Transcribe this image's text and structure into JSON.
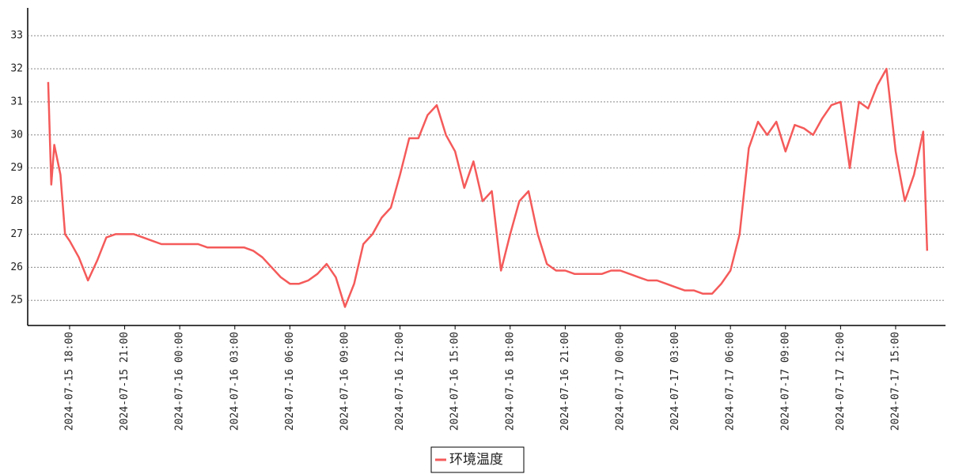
{
  "chart_data": {
    "type": "line",
    "x": [
      "2024-07-15 16:50",
      "2024-07-15 17:00",
      "2024-07-15 17:10",
      "2024-07-15 17:30",
      "2024-07-15 17:45",
      "2024-07-15 18:00",
      "2024-07-15 18:30",
      "2024-07-15 19:00",
      "2024-07-15 19:30",
      "2024-07-15 20:00",
      "2024-07-15 20:30",
      "2024-07-15 21:00",
      "2024-07-15 21:30",
      "2024-07-15 22:00",
      "2024-07-15 22:30",
      "2024-07-15 23:00",
      "2024-07-15 23:30",
      "2024-07-16 00:00",
      "2024-07-16 00:30",
      "2024-07-16 01:00",
      "2024-07-16 01:30",
      "2024-07-16 02:00",
      "2024-07-16 02:30",
      "2024-07-16 03:00",
      "2024-07-16 03:30",
      "2024-07-16 04:00",
      "2024-07-16 04:30",
      "2024-07-16 05:00",
      "2024-07-16 05:30",
      "2024-07-16 06:00",
      "2024-07-16 06:30",
      "2024-07-16 07:00",
      "2024-07-16 07:30",
      "2024-07-16 08:00",
      "2024-07-16 08:30",
      "2024-07-16 09:00",
      "2024-07-16 09:30",
      "2024-07-16 10:00",
      "2024-07-16 10:30",
      "2024-07-16 11:00",
      "2024-07-16 11:30",
      "2024-07-16 12:00",
      "2024-07-16 12:30",
      "2024-07-16 13:00",
      "2024-07-16 13:30",
      "2024-07-16 14:00",
      "2024-07-16 14:30",
      "2024-07-16 15:00",
      "2024-07-16 15:30",
      "2024-07-16 16:00",
      "2024-07-16 16:30",
      "2024-07-16 17:00",
      "2024-07-16 17:30",
      "2024-07-16 18:00",
      "2024-07-16 18:30",
      "2024-07-16 19:00",
      "2024-07-16 19:30",
      "2024-07-16 20:00",
      "2024-07-16 20:30",
      "2024-07-16 21:00",
      "2024-07-16 21:30",
      "2024-07-16 22:00",
      "2024-07-16 22:30",
      "2024-07-16 23:00",
      "2024-07-16 23:30",
      "2024-07-17 00:00",
      "2024-07-17 00:30",
      "2024-07-17 01:00",
      "2024-07-17 01:30",
      "2024-07-17 02:00",
      "2024-07-17 02:30",
      "2024-07-17 03:00",
      "2024-07-17 03:30",
      "2024-07-17 04:00",
      "2024-07-17 04:30",
      "2024-07-17 05:00",
      "2024-07-17 05:30",
      "2024-07-17 06:00",
      "2024-07-17 06:30",
      "2024-07-17 07:00",
      "2024-07-17 07:30",
      "2024-07-17 08:00",
      "2024-07-17 08:30",
      "2024-07-17 09:00",
      "2024-07-17 09:30",
      "2024-07-17 10:00",
      "2024-07-17 10:30",
      "2024-07-17 11:00",
      "2024-07-17 11:30",
      "2024-07-17 12:00",
      "2024-07-17 12:30",
      "2024-07-17 13:00",
      "2024-07-17 13:30",
      "2024-07-17 14:00",
      "2024-07-17 14:30",
      "2024-07-17 15:00",
      "2024-07-17 15:30",
      "2024-07-17 16:00",
      "2024-07-17 16:30",
      "2024-07-17 16:43"
    ],
    "series": [
      {
        "name": "环境温度",
        "color": "#f55a5a",
        "values": [
          31.6,
          28.5,
          29.7,
          28.8,
          27.0,
          26.8,
          26.3,
          25.6,
          26.2,
          26.9,
          27.0,
          27.0,
          27.0,
          26.9,
          26.8,
          26.7,
          26.7,
          26.7,
          26.7,
          26.7,
          26.6,
          26.6,
          26.6,
          26.6,
          26.6,
          26.5,
          26.3,
          26.0,
          25.7,
          25.5,
          25.5,
          25.6,
          25.8,
          26.1,
          25.7,
          24.8,
          25.5,
          26.7,
          27.0,
          27.5,
          27.8,
          28.8,
          29.9,
          29.9,
          30.6,
          30.9,
          30.0,
          29.5,
          28.4,
          29.2,
          28.0,
          28.3,
          25.9,
          27.0,
          28.0,
          28.3,
          27.0,
          26.1,
          25.9,
          25.9,
          25.8,
          25.8,
          25.8,
          25.8,
          25.9,
          25.9,
          25.8,
          25.7,
          25.6,
          25.6,
          25.5,
          25.4,
          25.3,
          25.3,
          25.2,
          25.2,
          25.5,
          25.9,
          27.0,
          29.6,
          30.4,
          30.0,
          30.4,
          29.5,
          30.3,
          30.2,
          30.0,
          30.5,
          30.9,
          31.0,
          29.0,
          31.0,
          30.8,
          31.5,
          32.0,
          29.5,
          28.0,
          28.8,
          30.1,
          26.5
        ]
      }
    ],
    "xlim": [
      "2024-07-15 15:43",
      "2024-07-17 17:43"
    ],
    "xticks": [
      "2024-07-15 18:00",
      "2024-07-15 21:00",
      "2024-07-16 00:00",
      "2024-07-16 03:00",
      "2024-07-16 06:00",
      "2024-07-16 09:00",
      "2024-07-16 12:00",
      "2024-07-16 15:00",
      "2024-07-16 18:00",
      "2024-07-16 21:00",
      "2024-07-17 00:00",
      "2024-07-17 03:00",
      "2024-07-17 06:00",
      "2024-07-17 09:00",
      "2024-07-17 12:00",
      "2024-07-17 15:00"
    ],
    "ylim": [
      24.24,
      33.84
    ],
    "yticks": [
      25,
      26,
      27,
      28,
      29,
      30,
      31,
      32,
      33
    ],
    "grid": true
  }
}
